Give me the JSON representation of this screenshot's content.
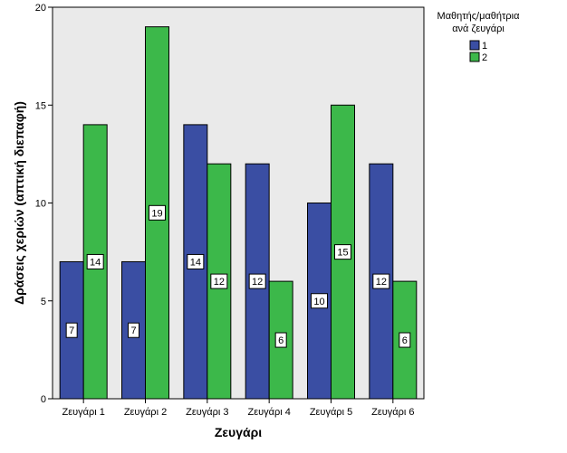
{
  "chart_data": {
    "type": "bar",
    "xlabel": "Ζευγάρι",
    "ylabel": "Δράσεις χεριών (απτική διεπαφή)",
    "ylim": [
      0,
      20
    ],
    "yticks": [
      0,
      5,
      10,
      15,
      20
    ],
    "grid": false,
    "categories": [
      "Ζευγάρι 1",
      "Ζευγάρι 2",
      "Ζευγάρι 3",
      "Ζευγάρι 4",
      "Ζευγάρι 5",
      "Ζευγάρι 6"
    ],
    "legend": {
      "title_lines": [
        "Μαθητής/μαθήτρια",
        "ανά ζευγάρι"
      ],
      "position": "top-right"
    },
    "series": [
      {
        "name": "1",
        "color": "#3a4ea3",
        "values": [
          7,
          7,
          14,
          12,
          10,
          12
        ]
      },
      {
        "name": "2",
        "color": "#3cb84a",
        "values": [
          14,
          19,
          12,
          6,
          15,
          6
        ]
      }
    ],
    "plot_background": "#eaeaea"
  }
}
